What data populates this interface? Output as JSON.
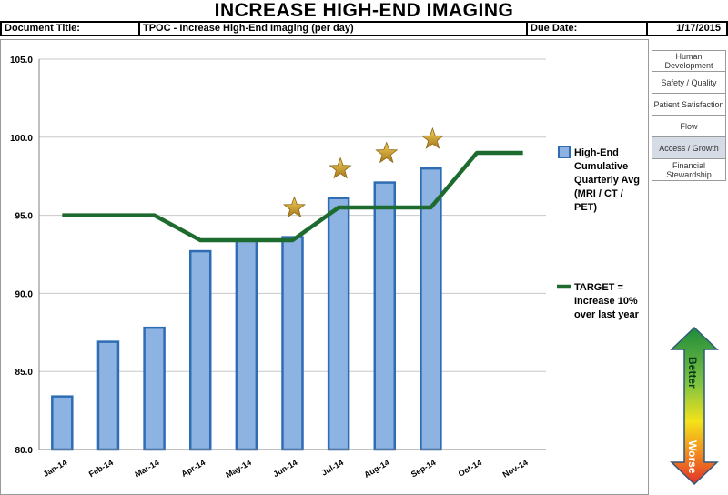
{
  "header": {
    "main_title": "INCREASE HIGH-END IMAGING",
    "doc_title_label": "Document Title:",
    "doc_title_value": "TPOC - Increase High-End Imaging (per day)",
    "due_date_label": "Due Date:",
    "due_date_value": "1/17/2015"
  },
  "categories_panel": {
    "items": [
      {
        "label": "Human Development",
        "selected": false
      },
      {
        "label": "Safety / Quality",
        "selected": false
      },
      {
        "label": "Patient Satisfaction",
        "selected": false
      },
      {
        "label": "Flow",
        "selected": false
      },
      {
        "label": "Access / Growth",
        "selected": true
      },
      {
        "label": "Financial Stewardship",
        "selected": false
      }
    ]
  },
  "indicator": {
    "top_label": "Better",
    "bottom_label": "Worse"
  },
  "chart_data": {
    "type": "bar",
    "categories": [
      "Jan-14",
      "Feb-14",
      "Mar-14",
      "Apr-14",
      "May-14",
      "Jun-14",
      "Jul-14",
      "Aug-14",
      "Sep-14",
      "Oct-14",
      "Nov-14"
    ],
    "ylim": [
      80.0,
      105.0
    ],
    "yticks": [
      "80.0",
      "85.0",
      "90.0",
      "95.0",
      "100.0",
      "105.0"
    ],
    "grid": true,
    "series": [
      {
        "name": "High-End Cumulative Quarterly Avg (MRI / CT / PET)",
        "type": "bar",
        "color": "#8db3e2",
        "values": [
          83.4,
          86.9,
          87.8,
          92.7,
          93.4,
          93.6,
          96.1,
          97.1,
          98.0,
          null,
          null
        ]
      },
      {
        "name": "TARGET = Increase 10% over last year",
        "type": "line",
        "color": "#1e6b30",
        "values": [
          95.0,
          95.0,
          95.0,
          93.4,
          93.4,
          93.4,
          95.5,
          95.5,
          95.5,
          99.0,
          99.0
        ]
      }
    ],
    "stars": [
      "Jun-14",
      "Jul-14",
      "Aug-14",
      "Sep-14"
    ],
    "legend_placement": "right"
  },
  "legend": {
    "bar_label_lines": [
      "High-End",
      "Cumulative",
      "Quarterly Avg",
      "(MRI / CT /",
      "PET)"
    ],
    "line_label_lines": [
      "TARGET  =",
      "Increase 10%",
      "over last year"
    ]
  }
}
